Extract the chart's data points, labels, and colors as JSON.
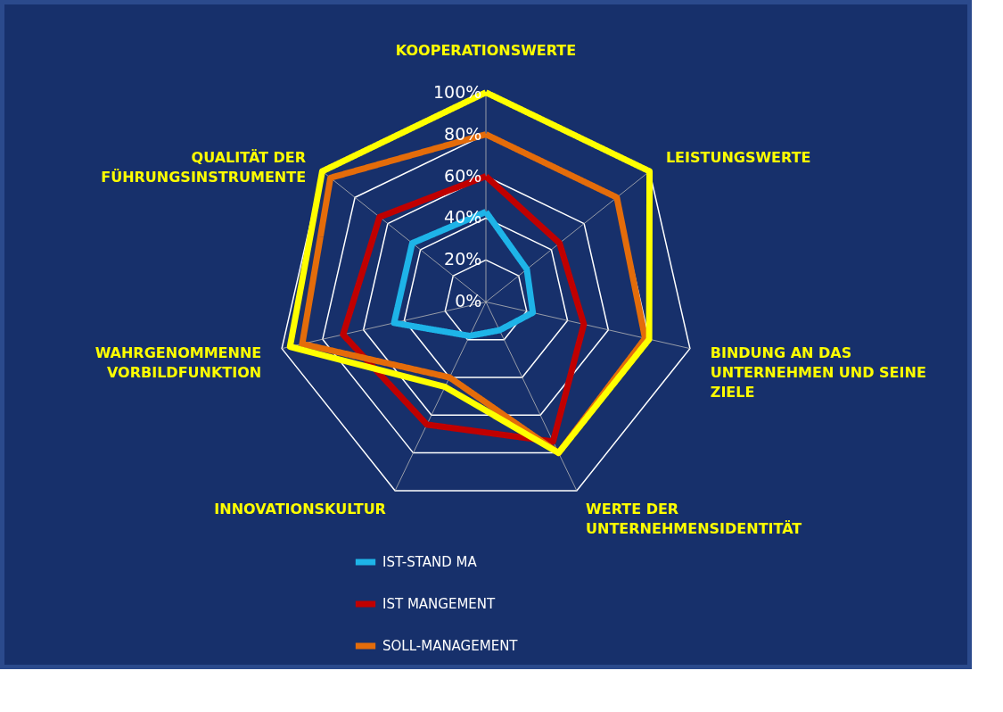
{
  "chart_data": {
    "type": "radar",
    "categories": [
      "KOOPERATIONSWERTE",
      "LEISTUNGSWERTE",
      "BINDUNG AN DAS UNTERNEHMEN UND SEINE ZIELE",
      "WERTE DER UNTERNEHMENSIDENTITÄT",
      "INNOVATIONSKULTUR",
      "WAHRGENOMMENNE VORBILDFUNKTION",
      "QUALITÄT DER FÜHRUNGSINSTRUMENTE"
    ],
    "series": [
      {
        "name": "IST-STAND MA",
        "color": "#1eb4e8",
        "values": [
          43,
          25,
          23,
          15,
          18,
          45,
          45
        ]
      },
      {
        "name": "IST MANGEMENT",
        "color": "#c00000",
        "values": [
          60,
          45,
          48,
          74,
          65,
          70,
          65
        ]
      },
      {
        "name": "SOLL-MANAGEMENT",
        "color": "#e46c0a",
        "values": [
          80,
          80,
          78,
          80,
          40,
          90,
          95
        ]
      },
      {
        "color": "#ffff00",
        "values": [
          100,
          100,
          80,
          80,
          45,
          96,
          100
        ]
      }
    ],
    "ylim": [
      0,
      100
    ],
    "yticks": [
      {
        "value": 0,
        "label": "0%"
      },
      {
        "value": 20,
        "label": "20%"
      },
      {
        "value": 40,
        "label": "40%"
      },
      {
        "value": 60,
        "label": "60%"
      },
      {
        "value": 80,
        "label": "80%"
      },
      {
        "value": 100,
        "label": "100%"
      }
    ],
    "grid": true,
    "legend": "bottom",
    "marker": "none",
    "line_style": "solid"
  }
}
